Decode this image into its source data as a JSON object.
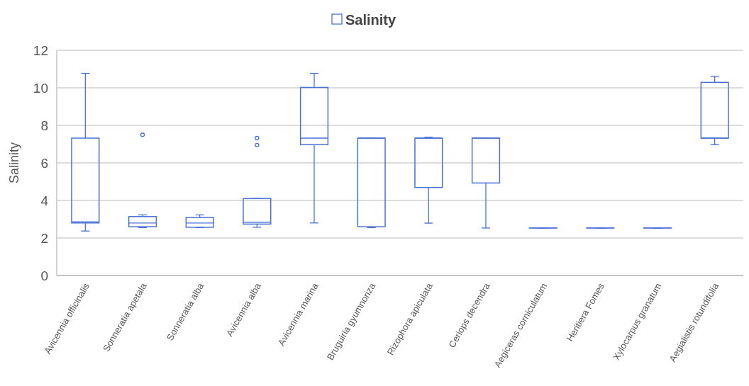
{
  "chart_data": {
    "type": "box",
    "ylabel": "Salinity",
    "legend": "top",
    "categories": [
      "Avicennia officinalis",
      "Sonneratia apetala",
      "Sonneratia alba",
      "Avicennia alba",
      "Avicennia marina",
      "Bruguiria gyumnoriza",
      "Rizophora apiculata",
      "Ceriops decendra",
      "Aegiceras corniculatum",
      "Heritiera Fomes",
      "Xylocarpus granatum",
      "Aegialistis rotundifolia"
    ],
    "series": [
      {
        "name": "Salinity",
        "color": "#4a72d6",
        "boxes": [
          {
            "low": 2.37,
            "q1": 2.8,
            "median": 2.86,
            "q3": 7.32,
            "high": 10.77
          },
          {
            "low": 2.55,
            "q1": 2.6,
            "median": 2.8,
            "q3": 3.14,
            "high": 3.23,
            "outliers": [
              7.5
            ]
          },
          {
            "low": 2.55,
            "q1": 2.57,
            "median": 2.8,
            "q3": 3.09,
            "high": 3.23
          },
          {
            "low": 2.57,
            "q1": 2.74,
            "median": 2.84,
            "q3": 4.1,
            "high": 4.1,
            "outliers": [
              7.32,
              6.95
            ]
          },
          {
            "low": 2.8,
            "q1": 6.97,
            "median": 7.32,
            "q3": 10.02,
            "high": 10.77
          },
          {
            "low": 2.55,
            "q1": 2.6,
            "median": 7.32,
            "q3": 7.32,
            "high": 7.32
          },
          {
            "low": 2.79,
            "q1": 4.69,
            "median": 7.32,
            "q3": 7.32,
            "high": 7.37
          },
          {
            "low": 2.53,
            "q1": 4.93,
            "median": 7.32,
            "q3": 7.32,
            "high": 7.32
          },
          {
            "low": 2.53,
            "q1": 2.53,
            "median": 2.53,
            "q3": 2.53,
            "high": 2.53
          },
          {
            "low": 2.53,
            "q1": 2.53,
            "median": 2.53,
            "q3": 2.53,
            "high": 2.53
          },
          {
            "low": 2.53,
            "q1": 2.53,
            "median": 2.53,
            "q3": 2.53,
            "high": 2.53
          },
          {
            "low": 6.97,
            "q1": 7.32,
            "median": 7.32,
            "q3": 10.29,
            "high": 10.61
          }
        ]
      }
    ],
    "ylim": [
      0,
      12
    ],
    "yticks": [
      0,
      2,
      4,
      6,
      8,
      10,
      12
    ],
    "grid": "y"
  }
}
